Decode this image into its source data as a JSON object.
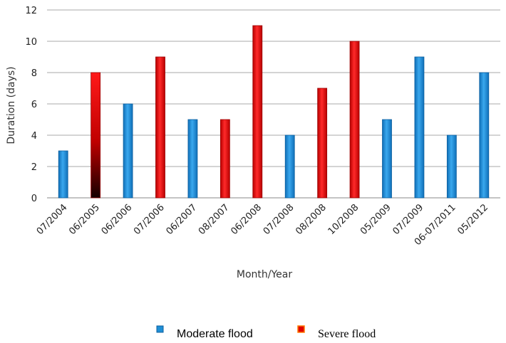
{
  "chart_data": {
    "type": "bar",
    "xlabel": "Month/Year",
    "ylabel": "Duration (days)",
    "ylim": [
      0,
      12
    ],
    "yticks": [
      0,
      2,
      4,
      6,
      8,
      10,
      12
    ],
    "grid": true,
    "legend_position": "bottom",
    "categories": [
      "07/2004",
      "06/2005",
      "06/2006",
      "07/2006",
      "06/2007",
      "08/2007",
      "06/2008",
      "07/2008",
      "08/2008",
      "10/2008",
      "05/2009",
      "07/2009",
      "06-07/2011",
      "05/2012"
    ],
    "values": [
      3,
      8,
      6,
      9,
      5,
      5,
      11,
      4,
      7,
      10,
      5,
      9,
      4,
      8
    ],
    "flood_type": [
      "moderate",
      "severe",
      "moderate",
      "severe",
      "moderate",
      "severe",
      "severe",
      "moderate",
      "severe",
      "severe",
      "moderate",
      "moderate",
      "moderate",
      "moderate"
    ],
    "legend": [
      {
        "key": "moderate",
        "label": "Moderate flood",
        "color": "#1f8fd6"
      },
      {
        "key": "severe",
        "label": "Severe flood",
        "color": "#e00000"
      }
    ]
  }
}
